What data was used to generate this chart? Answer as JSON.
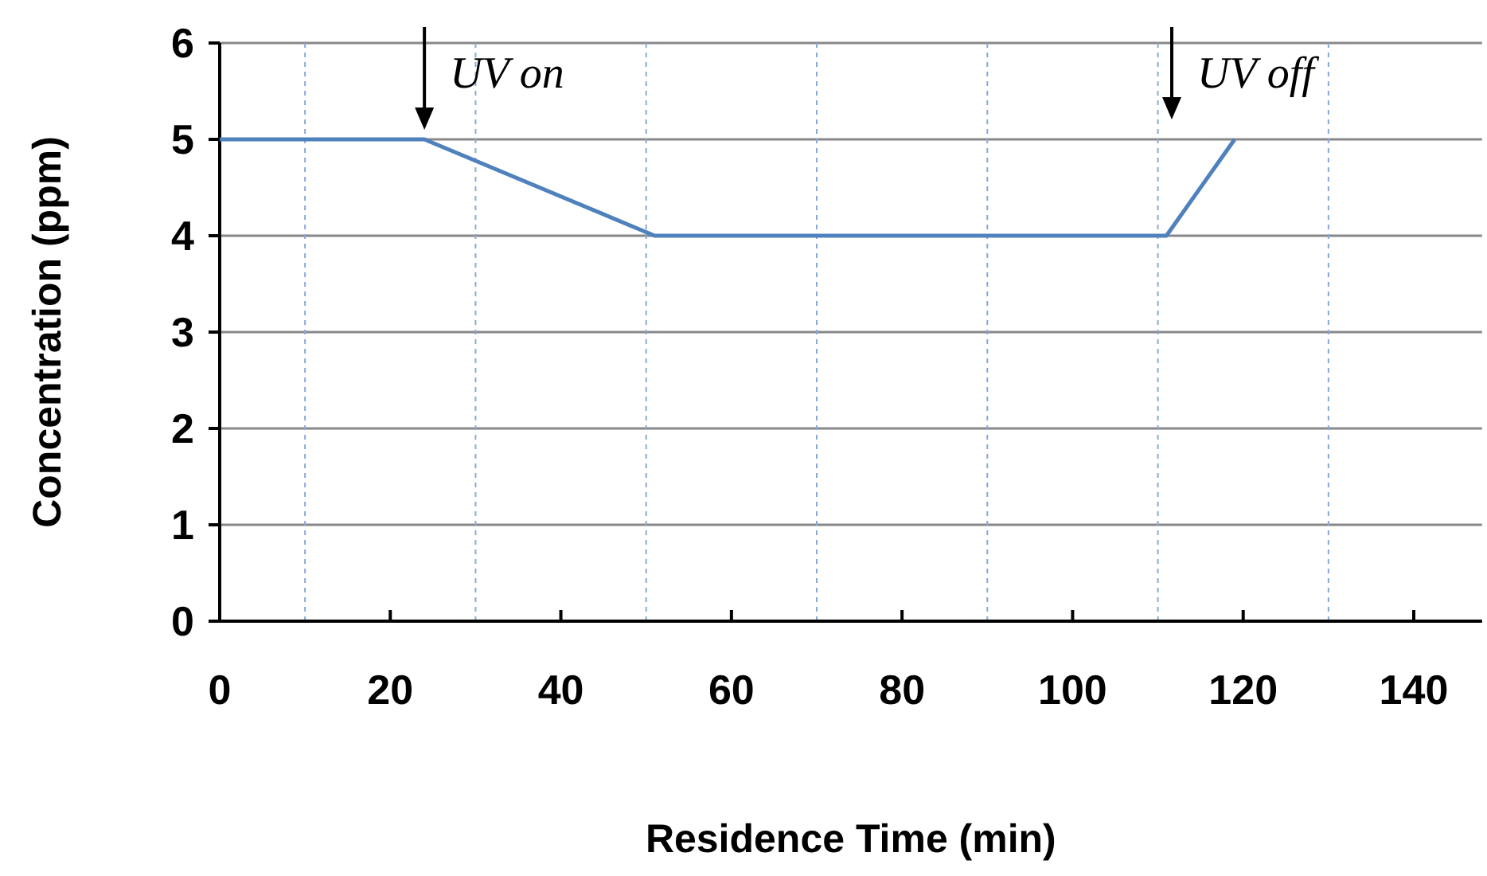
{
  "chart_data": {
    "type": "line",
    "xlabel": "Residence Time (min)",
    "ylabel": "Concentration (ppm)",
    "x": [
      0,
      24,
      51,
      111,
      119
    ],
    "series": [
      {
        "color": "#4f81bd",
        "values": [
          5,
          5,
          4,
          4,
          5
        ]
      }
    ],
    "xlim": [
      0,
      148
    ],
    "xticks": [
      0,
      {
        "value": 10,
        "label": null
      },
      20,
      {
        "value": 30,
        "label": null
      },
      40,
      {
        "value": 50,
        "label": null
      },
      60,
      {
        "value": 70,
        "label": null
      },
      80,
      {
        "value": 90,
        "label": null
      },
      100,
      {
        "value": 110,
        "label": null
      },
      120,
      {
        "value": 130,
        "label": null
      },
      140
    ],
    "ylim": [
      0,
      6
    ],
    "yticks": [
      0,
      1,
      2,
      3,
      4,
      5,
      6
    ],
    "grid": true,
    "marker": "none",
    "line_style": "solid",
    "annotations": [
      {
        "text": "UV on",
        "x": 24,
        "y": 5
      },
      "UV off"
    ]
  }
}
